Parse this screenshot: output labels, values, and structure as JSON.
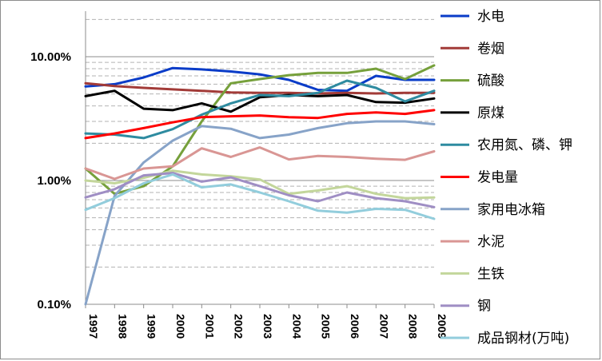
{
  "chart_data": {
    "type": "line",
    "title": "",
    "xlabel": "",
    "ylabel": "",
    "y_scale": "log",
    "ylim": [
      0.001,
      0.2
    ],
    "y_tick_labels": [
      "10.00%",
      "1.00%",
      "0.10%"
    ],
    "x": [
      "1997",
      "1998",
      "1999",
      "2000",
      "2001",
      "2002",
      "2003",
      "2004",
      "2005",
      "2006",
      "2007",
      "2008",
      "2009"
    ],
    "grid": "horizontal log gridlines (dashed minor, solid major)",
    "legend_position": "right",
    "series": [
      {
        "name": "水电",
        "color": "#0a3cc8",
        "values": [
          0.0575,
          0.06,
          0.068,
          0.081,
          0.079,
          0.076,
          0.072,
          0.065,
          0.054,
          0.053,
          0.07,
          0.065,
          0.065
        ]
      },
      {
        "name": "卷烟",
        "color": "#a23b38",
        "values": [
          0.061,
          0.058,
          0.056,
          0.0545,
          0.053,
          0.0515,
          0.051,
          0.051,
          0.0505,
          0.051,
          0.0505,
          0.051,
          0.051
        ]
      },
      {
        "name": "硫酸",
        "color": "#76a03b",
        "values": [
          0.0125,
          0.0078,
          0.009,
          0.013,
          0.03,
          0.061,
          0.066,
          0.071,
          0.074,
          0.074,
          0.08,
          0.066,
          0.085
        ]
      },
      {
        "name": "原煤",
        "color": "#000000",
        "values": [
          0.048,
          0.053,
          0.038,
          0.037,
          0.042,
          0.036,
          0.047,
          0.049,
          0.048,
          0.049,
          0.043,
          0.0425,
          0.046
        ]
      },
      {
        "name": "农用氮、磷、钾",
        "color": "#2e8ba0",
        "values": [
          0.024,
          0.0235,
          0.022,
          0.026,
          0.034,
          0.042,
          0.049,
          0.048,
          0.051,
          0.064,
          0.056,
          0.0435,
          0.053
        ]
      },
      {
        "name": "发电量",
        "color": "#ff0000",
        "values": [
          0.022,
          0.024,
          0.0265,
          0.0295,
          0.0325,
          0.033,
          0.0335,
          0.0325,
          0.032,
          0.0345,
          0.0355,
          0.0345,
          0.037
        ]
      },
      {
        "name": "家用电冰箱",
        "color": "#87a3c8",
        "values": [
          0.00095,
          0.0075,
          0.014,
          0.021,
          0.0275,
          0.0262,
          0.022,
          0.0235,
          0.0265,
          0.029,
          0.03,
          0.03,
          0.0285
        ]
      },
      {
        "name": "水泥",
        "color": "#d99694",
        "values": [
          0.0125,
          0.0103,
          0.0125,
          0.013,
          0.0182,
          0.0155,
          0.0185,
          0.0148,
          0.0158,
          0.0155,
          0.015,
          0.0147,
          0.0172
        ]
      },
      {
        "name": "生铁",
        "color": "#c3d69b",
        "values": [
          0.01,
          0.0095,
          0.0105,
          0.012,
          0.0112,
          0.0108,
          0.0102,
          0.0078,
          0.0083,
          0.009,
          0.0078,
          0.0072,
          0.0073
        ]
      },
      {
        "name": "钢",
        "color": "#9f8ec4",
        "values": [
          0.0073,
          0.0085,
          0.011,
          0.0115,
          0.0098,
          0.0106,
          0.009,
          0.0076,
          0.0068,
          0.008,
          0.0072,
          0.0068,
          0.0061
        ]
      },
      {
        "name": "成品钢材(万吨)",
        "color": "#92cddc",
        "values": [
          0.0058,
          0.0072,
          0.0095,
          0.0112,
          0.0088,
          0.0093,
          0.008,
          0.0068,
          0.0057,
          0.0055,
          0.0059,
          0.0058,
          0.0049
        ]
      }
    ]
  }
}
